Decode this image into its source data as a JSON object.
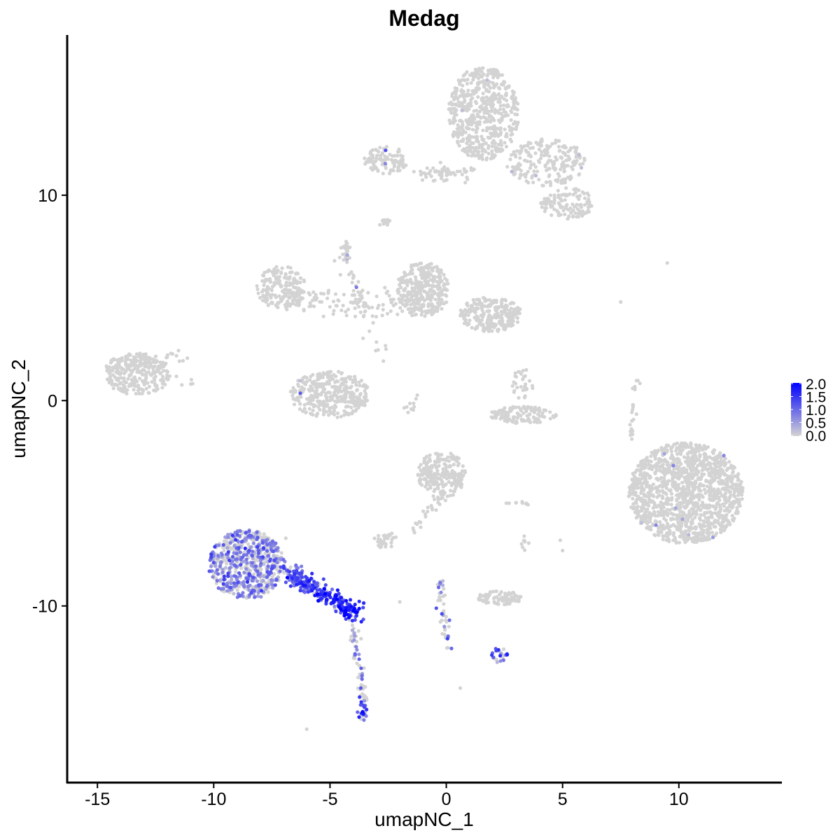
{
  "chart_data": {
    "type": "scatter",
    "title": "Medag",
    "xlabel": "umapNC_1",
    "ylabel": "umapNC_2",
    "xlim": [
      -16.3,
      14.4
    ],
    "ylim": [
      -18.6,
      17.8
    ],
    "xticks": [
      -15,
      -10,
      -5,
      0,
      5,
      10
    ],
    "yticks": [
      -10,
      0,
      10
    ],
    "grid": false,
    "legend": {
      "placement": "right",
      "type": "colorbar",
      "labels": [
        "2.0",
        "1.5",
        "1.0",
        "0.5",
        "0.0"
      ],
      "range": [
        0,
        2.0
      ],
      "low_color": "#D3D3D3",
      "high_color": "#0000FF"
    },
    "clusters": [
      {
        "x": 1.6,
        "y": 14.0,
        "sx": 0.8,
        "sy": 1.2,
        "n": 550,
        "expr": 0,
        "frac": 0.003
      },
      {
        "x": 4.3,
        "y": 11.6,
        "sx": 0.9,
        "sy": 0.6,
        "n": 220,
        "expr": 0.6,
        "frac": 0.01
      },
      {
        "x": 5.2,
        "y": 9.6,
        "sx": 0.6,
        "sy": 0.4,
        "n": 120,
        "expr": 0,
        "frac": 0
      },
      {
        "x": -2.6,
        "y": 11.7,
        "sx": 0.5,
        "sy": 0.35,
        "n": 110,
        "expr": 0.8,
        "frac": 0.01
      },
      {
        "x": -2.7,
        "y": 8.7,
        "sx": 0.15,
        "sy": 0.1,
        "n": 15,
        "expr": 0,
        "frac": 0
      },
      {
        "x": -4.4,
        "y": 7.3,
        "sx": 0.15,
        "sy": 0.25,
        "n": 20,
        "expr": 0,
        "frac": 0
      },
      {
        "x": -7.1,
        "y": 5.5,
        "sx": 0.55,
        "sy": 0.55,
        "n": 180,
        "expr": 0,
        "frac": 0
      },
      {
        "x": -1.0,
        "y": 5.4,
        "sx": 0.6,
        "sy": 0.7,
        "n": 320,
        "expr": 0,
        "frac": 0
      },
      {
        "x": 1.9,
        "y": 4.2,
        "sx": 0.7,
        "sy": 0.45,
        "n": 260,
        "expr": 0,
        "frac": 0
      },
      {
        "x": -5.0,
        "y": 0.3,
        "sx": 0.9,
        "sy": 0.6,
        "n": 330,
        "expr": 0.6,
        "frac": 0.005
      },
      {
        "x": -13.3,
        "y": 1.3,
        "sx": 0.75,
        "sy": 0.55,
        "n": 300,
        "expr": 0,
        "frac": 0
      },
      {
        "x": 3.3,
        "y": -0.7,
        "sx": 0.75,
        "sy": 0.22,
        "n": 130,
        "expr": 0,
        "frac": 0
      },
      {
        "x": 3.3,
        "y": 0.8,
        "sx": 0.25,
        "sy": 0.4,
        "n": 30,
        "expr": 0,
        "frac": 0
      },
      {
        "x": 10.3,
        "y": -4.5,
        "sx": 1.3,
        "sy": 1.3,
        "n": 1300,
        "expr": 0.7,
        "frac": 0.004
      },
      {
        "x": -0.2,
        "y": -3.6,
        "sx": 0.55,
        "sy": 0.6,
        "n": 230,
        "expr": 0,
        "frac": 0
      },
      {
        "x": -2.6,
        "y": -6.8,
        "sx": 0.3,
        "sy": 0.2,
        "n": 35,
        "expr": 0,
        "frac": 0
      },
      {
        "x": 2.3,
        "y": -9.6,
        "sx": 0.5,
        "sy": 0.18,
        "n": 90,
        "expr": 0,
        "frac": 0
      },
      {
        "x": 2.3,
        "y": -12.4,
        "sx": 0.2,
        "sy": 0.2,
        "n": 25,
        "expr": 1.0,
        "frac": 0.6
      },
      {
        "x": -8.6,
        "y": -8.0,
        "sx": 0.85,
        "sy": 0.9,
        "n": 650,
        "expr": 0.75,
        "frac": 0.55
      },
      {
        "x": -3.6,
        "y": -15.1,
        "sx": 0.12,
        "sy": 0.25,
        "n": 25,
        "expr": 1.2,
        "frac": 0.8
      }
    ],
    "segments": [
      {
        "from": [
          -6.8,
          -8.3
        ],
        "to": [
          -3.9,
          -10.4
        ],
        "n": 260,
        "spread": 0.22,
        "expr": 1.4,
        "frac": 0.9
      },
      {
        "from": [
          -4.1,
          -10.6
        ],
        "to": [
          -3.5,
          -14.8
        ],
        "n": 60,
        "spread": 0.12,
        "expr": 0.9,
        "frac": 0.45
      },
      {
        "from": [
          -7.5,
          5.0
        ],
        "to": [
          -1.5,
          4.6
        ],
        "n": 120,
        "spread": 0.35,
        "expr": 0,
        "frac": 0
      },
      {
        "from": [
          -4.5,
          7.0
        ],
        "to": [
          -2.7,
          2.0
        ],
        "n": 40,
        "spread": 0.2,
        "expr": 0.6,
        "frac": 0.02
      },
      {
        "from": [
          -1.0,
          11.0
        ],
        "to": [
          1.0,
          11.2
        ],
        "n": 60,
        "spread": 0.2,
        "expr": 0,
        "frac": 0
      },
      {
        "from": [
          -0.3,
          -8.8
        ],
        "to": [
          0.1,
          -12.1
        ],
        "n": 45,
        "spread": 0.08,
        "expr": 0.8,
        "frac": 0.35
      },
      {
        "from": [
          -1.5,
          -6.4
        ],
        "to": [
          -0.1,
          -4.5
        ],
        "n": 25,
        "spread": 0.15,
        "expr": 0,
        "frac": 0
      },
      {
        "from": [
          7.9,
          -1.8
        ],
        "to": [
          8.2,
          1.0
        ],
        "n": 25,
        "spread": 0.07,
        "expr": 0,
        "frac": 0
      },
      {
        "from": [
          -12.0,
          2.5
        ],
        "to": [
          -11.0,
          0.8
        ],
        "n": 15,
        "spread": 0.2,
        "expr": 0,
        "frac": 0
      },
      {
        "from": [
          2.5,
          -5.0
        ],
        "to": [
          3.5,
          -5.0
        ],
        "n": 10,
        "spread": 0.05,
        "expr": 0,
        "frac": 0
      },
      {
        "from": [
          3.3,
          -6.5
        ],
        "to": [
          3.4,
          -7.6
        ],
        "n": 8,
        "spread": 0.1,
        "expr": 0,
        "frac": 0
      },
      {
        "from": [
          -1.8,
          -0.6
        ],
        "to": [
          -1.2,
          0.2
        ],
        "n": 10,
        "spread": 0.1,
        "expr": 0,
        "frac": 0
      }
    ],
    "outliers": [
      [
        -6.0,
        -16.0
      ],
      [
        0.6,
        -14.0
      ],
      [
        9.5,
        6.7
      ],
      [
        7.5,
        4.8
      ],
      [
        -2.0,
        -9.8
      ],
      [
        5.0,
        -7.3
      ],
      [
        4.9,
        -6.8
      ],
      [
        -6.9,
        -6.7
      ]
    ]
  }
}
